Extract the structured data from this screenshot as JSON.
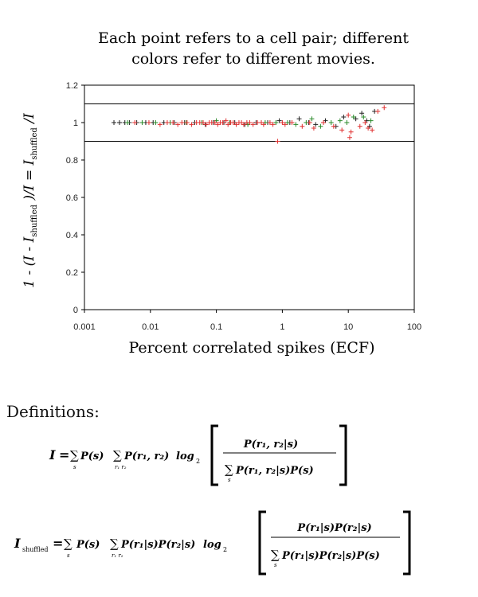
{
  "chart_data": {
    "type": "scatter",
    "title_lines": [
      "Each point refers to a cell pair; different",
      "colors refer to different movies."
    ],
    "xlabel": "Percent correlated spikes (ECF)",
    "ylabel": {
      "p1": "1 - (",
      "p2": "I",
      "p3": " - ",
      "p4": "I",
      "p4_sub": "shuffled",
      "p5": " )/",
      "p6": "I",
      "p7": " = ",
      "p8": "I",
      "p8_sub": "shuffled",
      "p9": " /",
      "p10": "I"
    },
    "x_scale": "log",
    "xlim": [
      0.001,
      100
    ],
    "ylim": [
      0,
      1.2
    ],
    "x_ticks": [
      0.001,
      0.01,
      0.1,
      1,
      10,
      100
    ],
    "x_tick_labels": [
      "0.001",
      "0.01",
      "0.1",
      "1",
      "10",
      "100"
    ],
    "y_ticks": [
      0,
      0.2,
      0.4,
      0.6,
      0.8,
      1,
      1.2
    ],
    "y_tick_labels": [
      "0",
      "0.2",
      "0.4",
      "0.6",
      "0.8",
      "1",
      "1.2"
    ],
    "reference_lines": [
      0.9,
      1.1
    ],
    "marker": "+",
    "grid": false,
    "series": [
      {
        "color": "#222222",
        "points": [
          [
            0.0028,
            1.0
          ],
          [
            0.0034,
            1.0
          ],
          [
            0.0041,
            1.0
          ],
          [
            0.0048,
            1.0
          ],
          [
            0.0062,
            1.0
          ],
          [
            0.0085,
            1.0
          ],
          [
            0.011,
            1.0
          ],
          [
            0.016,
            1.0
          ],
          [
            0.023,
            1.0
          ],
          [
            0.033,
            1.0
          ],
          [
            0.047,
            1.0
          ],
          [
            0.068,
            0.99
          ],
          [
            0.09,
            1.0
          ],
          [
            0.13,
            1.0
          ],
          [
            0.19,
            1.0
          ],
          [
            0.27,
            0.99
          ],
          [
            0.4,
            1.0
          ],
          [
            0.6,
            1.0
          ],
          [
            0.9,
            1.01
          ],
          [
            1.3,
            1.0
          ],
          [
            1.8,
            1.02
          ],
          [
            2.5,
            1.0
          ],
          [
            3.2,
            0.99
          ],
          [
            4.5,
            1.01
          ],
          [
            6.5,
            0.98
          ],
          [
            8.5,
            1.03
          ],
          [
            13,
            1.02
          ],
          [
            16,
            1.05
          ],
          [
            19,
            1.01
          ],
          [
            21,
            0.98
          ],
          [
            25,
            1.06
          ]
        ]
      },
      {
        "color": "#2a8a2a",
        "points": [
          [
            0.0045,
            1.0
          ],
          [
            0.0075,
            1.0
          ],
          [
            0.012,
            1.0
          ],
          [
            0.02,
            1.0
          ],
          [
            0.035,
            1.0
          ],
          [
            0.06,
            1.0
          ],
          [
            0.1,
            1.01
          ],
          [
            0.16,
            1.0
          ],
          [
            0.3,
            0.99
          ],
          [
            0.55,
            1.0
          ],
          [
            0.8,
            1.0
          ],
          [
            1.2,
            1.0
          ],
          [
            1.6,
            0.99
          ],
          [
            2.3,
            1.0
          ],
          [
            2.8,
            1.02
          ],
          [
            3.8,
            0.98
          ],
          [
            5.5,
            1.0
          ],
          [
            7.5,
            1.01
          ],
          [
            9.5,
            1.0
          ],
          [
            12,
            1.03
          ],
          [
            17,
            1.03
          ],
          [
            22,
            1.01
          ]
        ]
      },
      {
        "color": "#e03030",
        "points": [
          [
            0.0058,
            1.0
          ],
          [
            0.0095,
            1.0
          ],
          [
            0.014,
            0.99
          ],
          [
            0.018,
            1.0
          ],
          [
            0.022,
            1.0
          ],
          [
            0.026,
            0.99
          ],
          [
            0.03,
            1.0
          ],
          [
            0.036,
            1.0
          ],
          [
            0.042,
            0.99
          ],
          [
            0.05,
            1.0
          ],
          [
            0.056,
            1.0
          ],
          [
            0.063,
            1.0
          ],
          [
            0.07,
            0.99
          ],
          [
            0.078,
            1.0
          ],
          [
            0.085,
            1.0
          ],
          [
            0.095,
            1.0
          ],
          [
            0.105,
            0.99
          ],
          [
            0.115,
            1.0
          ],
          [
            0.125,
            1.0
          ],
          [
            0.14,
            1.01
          ],
          [
            0.15,
            0.99
          ],
          [
            0.165,
            1.0
          ],
          [
            0.18,
            1.0
          ],
          [
            0.2,
            0.99
          ],
          [
            0.22,
            1.0
          ],
          [
            0.24,
            1.0
          ],
          [
            0.26,
            0.99
          ],
          [
            0.29,
            1.0
          ],
          [
            0.32,
            1.0
          ],
          [
            0.36,
            0.99
          ],
          [
            0.42,
            1.0
          ],
          [
            0.48,
            1.0
          ],
          [
            0.52,
            0.99
          ],
          [
            0.65,
            1.0
          ],
          [
            0.72,
            0.99
          ],
          [
            0.85,
            0.9
          ],
          [
            1.0,
            1.0
          ],
          [
            1.1,
            0.99
          ],
          [
            1.4,
            1.0
          ],
          [
            2.0,
            0.98
          ],
          [
            2.6,
            1.0
          ],
          [
            3.0,
            0.97
          ],
          [
            4.2,
            1.0
          ],
          [
            6.0,
            0.98
          ],
          [
            8.0,
            0.96
          ],
          [
            10,
            1.04
          ],
          [
            10.5,
            0.92
          ],
          [
            11,
            0.95
          ],
          [
            15,
            0.98
          ],
          [
            18,
            1.0
          ],
          [
            20,
            0.97
          ],
          [
            23,
            0.96
          ],
          [
            28,
            1.06
          ],
          [
            35,
            1.08
          ]
        ]
      }
    ]
  },
  "definitions": {
    "heading": "Definitions:",
    "eq1": {
      "lhs": "I",
      "equals": "=",
      "sum": "∑",
      "sum_sub_s": "s",
      "term_ps": "P(s)",
      "sum_sub_r": "r₁ r₂",
      "term_prr": "P(r₁, r₂)",
      "log": "log",
      "log_base": "2",
      "num": "P(r₁, r₂|s)",
      "den": "P(r₁, r₂|s)P(s)",
      "den_sub": "s"
    },
    "eq2": {
      "lhs": "I",
      "lhs_sub": "shuffled",
      "equals": "=",
      "sum": "∑",
      "sum_sub_s": "s",
      "term_ps": "P(s)",
      "sum_sub_r": "r₁ r₂",
      "term_prr": "P(r₁|s)P(r₂|s)",
      "log": "log",
      "log_base": "2",
      "num": "P(r₁|s)P(r₂|s)",
      "den": "P(r₁|s)P(r₂|s)P(s)",
      "den_sub": "s"
    }
  }
}
